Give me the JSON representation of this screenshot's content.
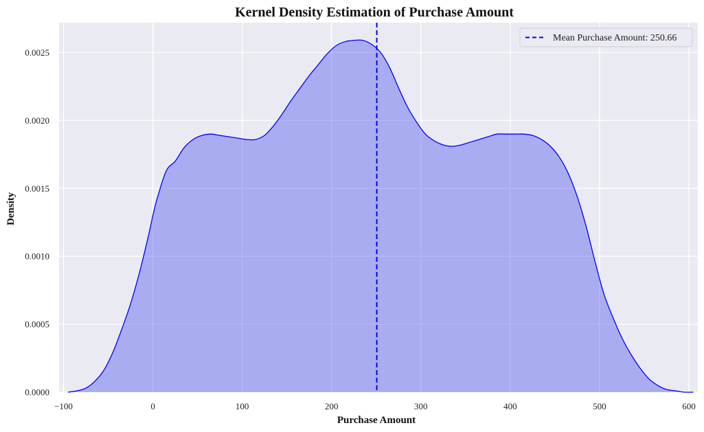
{
  "chart_data": {
    "type": "area",
    "title": "Kernel Density Estimation of Purchase Amount",
    "xlabel": "Purchase Amount",
    "ylabel": "Density",
    "xlim": [
      -105,
      610
    ],
    "ylim": [
      0,
      0.00272
    ],
    "x_ticks": [
      -100,
      0,
      100,
      200,
      300,
      400,
      500,
      600
    ],
    "x_tick_labels": [
      "−100",
      "0",
      "100",
      "200",
      "300",
      "400",
      "500",
      "600"
    ],
    "y_ticks": [
      0,
      0.0005,
      0.001,
      0.0015,
      0.002,
      0.0025
    ],
    "y_tick_labels": [
      "0.0000",
      "0.0005",
      "0.0010",
      "0.0015",
      "0.0020",
      "0.0025"
    ],
    "grid": true,
    "legend_position": "top-right",
    "series": [
      {
        "x": [
          -95,
          -85,
          -75,
          -65,
          -55,
          -45,
          -35,
          -25,
          -15,
          -5,
          0,
          5,
          15,
          25,
          35,
          45,
          55,
          65,
          75,
          85,
          95,
          105,
          115,
          125,
          135,
          145,
          155,
          165,
          175,
          185,
          195,
          205,
          215,
          225,
          235,
          245,
          255,
          265,
          275,
          285,
          295,
          305,
          315,
          325,
          335,
          345,
          355,
          365,
          375,
          385,
          395,
          405,
          415,
          425,
          435,
          445,
          455,
          465,
          475,
          485,
          495,
          505,
          515,
          525,
          535,
          545,
          555,
          565,
          575,
          585,
          595,
          605
        ],
        "y": [
          0.0,
          1e-05,
          3e-05,
          8e-05,
          0.00016,
          0.00029,
          0.00046,
          0.00065,
          0.00088,
          0.00115,
          0.0013,
          0.00143,
          0.00163,
          0.0017,
          0.0018,
          0.00186,
          0.00189,
          0.0019,
          0.00189,
          0.00188,
          0.00187,
          0.00186,
          0.00186,
          0.00189,
          0.00196,
          0.00205,
          0.00215,
          0.00224,
          0.00233,
          0.00241,
          0.00249,
          0.00255,
          0.00258,
          0.00259,
          0.00259,
          0.00256,
          0.0025,
          0.00239,
          0.00224,
          0.0021,
          0.00199,
          0.0019,
          0.00185,
          0.00182,
          0.00181,
          0.00182,
          0.00184,
          0.00186,
          0.00188,
          0.0019,
          0.0019,
          0.0019,
          0.0019,
          0.00189,
          0.00186,
          0.00181,
          0.00173,
          0.00161,
          0.00144,
          0.00122,
          0.00096,
          0.00072,
          0.00055,
          0.0004,
          0.00028,
          0.00018,
          0.0001,
          5e-05,
          2e-05,
          1e-05,
          0.0,
          0.0
        ]
      }
    ],
    "mean_line": {
      "value": 250.66,
      "label": "Mean Purchase Amount: 250.66"
    },
    "colors": {
      "background": "#ffffff",
      "plot_background": "#eaeaf2",
      "grid": "#ffffff",
      "fill": "#aeb0f6",
      "line": "#0000ff",
      "mean_line": "#0000ff",
      "text": "#111111"
    }
  }
}
